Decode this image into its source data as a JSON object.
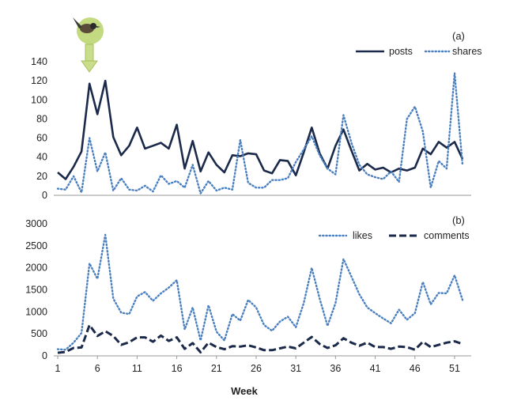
{
  "chart_data": [
    {
      "type": "line",
      "panel_label": "(a)",
      "x": [
        1,
        2,
        3,
        4,
        5,
        6,
        7,
        8,
        9,
        10,
        11,
        12,
        13,
        14,
        15,
        16,
        17,
        18,
        19,
        20,
        21,
        22,
        23,
        24,
        25,
        26,
        27,
        28,
        29,
        30,
        31,
        32,
        33,
        34,
        35,
        36,
        37,
        38,
        39,
        40,
        41,
        42,
        43,
        44,
        45,
        46,
        47,
        48,
        49,
        50,
        51,
        52
      ],
      "ylim": [
        0,
        150
      ],
      "yticks": [
        0,
        20,
        40,
        60,
        80,
        100,
        120,
        140
      ],
      "legend_position": "top-right",
      "series": [
        {
          "name": "posts",
          "style": "solid",
          "color": "#1b2a4a",
          "values": [
            24,
            17,
            30,
            46,
            117,
            85,
            120,
            61,
            42,
            52,
            71,
            49,
            52,
            55,
            49,
            74,
            28,
            57,
            25,
            45,
            32,
            24,
            42,
            41,
            44,
            43,
            26,
            23,
            37,
            36,
            21,
            45,
            71,
            44,
            28,
            52,
            69,
            47,
            26,
            33,
            27,
            29,
            24,
            28,
            26,
            29,
            49,
            43,
            56,
            50,
            56,
            38
          ]
        },
        {
          "name": "shares",
          "style": "dotted",
          "color": "#4a7fc0",
          "values": [
            7,
            6,
            20,
            3,
            60,
            25,
            45,
            5,
            18,
            6,
            5,
            10,
            4,
            21,
            12,
            15,
            8,
            32,
            2,
            15,
            5,
            8,
            6,
            58,
            13,
            8,
            8,
            16,
            16,
            18,
            35,
            48,
            62,
            42,
            28,
            22,
            84,
            55,
            32,
            22,
            19,
            17,
            25,
            14,
            80,
            93,
            67,
            8,
            36,
            28,
            128,
            32
          ]
        }
      ]
    },
    {
      "type": "line",
      "panel_label": "(b)",
      "x": [
        1,
        2,
        3,
        4,
        5,
        6,
        7,
        8,
        9,
        10,
        11,
        12,
        13,
        14,
        15,
        16,
        17,
        18,
        19,
        20,
        21,
        22,
        23,
        24,
        25,
        26,
        27,
        28,
        29,
        30,
        31,
        32,
        33,
        34,
        35,
        36,
        37,
        38,
        39,
        40,
        41,
        42,
        43,
        44,
        45,
        46,
        47,
        48,
        49,
        50,
        51,
        52
      ],
      "ylim": [
        0,
        3000
      ],
      "yticks": [
        0,
        500,
        1000,
        1500,
        2000,
        2500,
        3000
      ],
      "xticks": [
        1,
        6,
        11,
        16,
        21,
        26,
        31,
        36,
        41,
        46,
        51
      ],
      "xlabel": "Week",
      "legend_position": "top-right",
      "series": [
        {
          "name": "likes",
          "style": "dotted",
          "color": "#4a7fc0",
          "values": [
            150,
            140,
            300,
            520,
            2100,
            1750,
            2750,
            1300,
            980,
            950,
            1350,
            1450,
            1250,
            1420,
            1550,
            1720,
            600,
            1100,
            350,
            1150,
            550,
            350,
            950,
            800,
            1270,
            1100,
            700,
            570,
            780,
            890,
            650,
            1200,
            2000,
            1300,
            680,
            1200,
            2200,
            1800,
            1400,
            1100,
            970,
            850,
            740,
            1050,
            820,
            970,
            1680,
            1170,
            1430,
            1420,
            1830,
            1270
          ]
        },
        {
          "name": "comments",
          "style": "dashed",
          "color": "#1b2a4a",
          "values": [
            70,
            90,
            180,
            190,
            700,
            450,
            560,
            450,
            250,
            310,
            420,
            420,
            320,
            460,
            340,
            420,
            160,
            290,
            80,
            300,
            200,
            150,
            220,
            210,
            240,
            190,
            130,
            130,
            170,
            210,
            170,
            300,
            430,
            270,
            180,
            240,
            400,
            300,
            230,
            300,
            200,
            200,
            160,
            210,
            200,
            140,
            320,
            200,
            250,
            300,
            330,
            270
          ]
        }
      ]
    }
  ]
}
